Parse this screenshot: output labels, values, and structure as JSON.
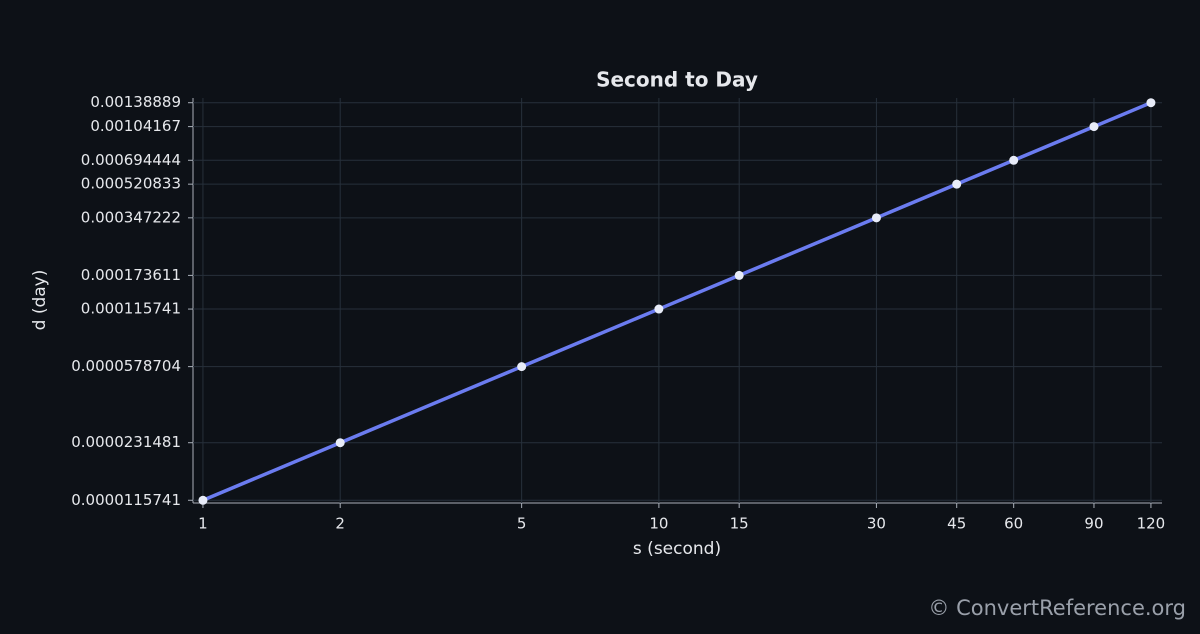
{
  "chart_data": {
    "type": "line",
    "title": "Second to Day",
    "x_label": "s (second)",
    "y_label": "d (day)",
    "x": [
      1,
      2,
      5,
      10,
      15,
      30,
      45,
      60,
      90,
      120
    ],
    "values": [
      1.15741e-05,
      2.31481e-05,
      5.78704e-05,
      0.000115741,
      0.000173611,
      0.000347222,
      0.000520833,
      0.000694444,
      0.00104167,
      0.00138889
    ],
    "color": "#6b7cf0",
    "marker_color": "#e8ecf8",
    "x_log": true,
    "y_log": true,
    "xlim": [
      0.951,
      126.9
    ],
    "ylim": [
      1.12e-05,
      0.00147
    ],
    "xticks": [
      1,
      2,
      5,
      10,
      15,
      30,
      45,
      60,
      90,
      120
    ],
    "yticks": [
      1.15741e-05,
      2.31481e-05,
      5.78704e-05,
      0.000115741,
      0.000173611,
      0.000347222,
      0.000520833,
      0.000694444,
      0.00104167,
      0.00138889
    ],
    "grid": true,
    "footer": "© ConvertReference.org"
  }
}
